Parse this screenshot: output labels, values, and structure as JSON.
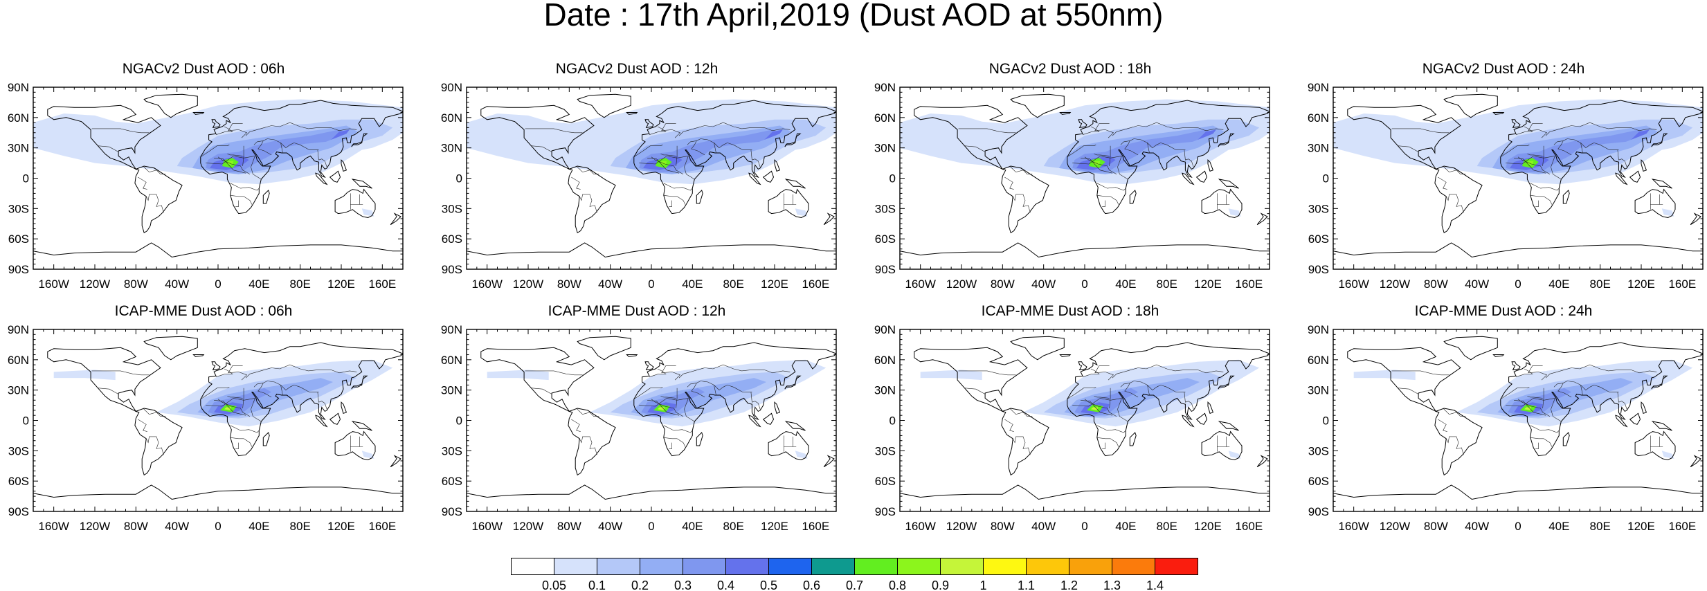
{
  "title": "Date : 17th April,2019 (Dust AOD at 550nm)",
  "panels": [
    {
      "title": "NGACv2 Dust AOD : 06h",
      "model": "NGACv2",
      "lead": "06h",
      "row": 0,
      "col": 0
    },
    {
      "title": "NGACv2 Dust AOD : 12h",
      "model": "NGACv2",
      "lead": "12h",
      "row": 0,
      "col": 1
    },
    {
      "title": "NGACv2 Dust AOD : 18h",
      "model": "NGACv2",
      "lead": "18h",
      "row": 0,
      "col": 2
    },
    {
      "title": "NGACv2 Dust AOD : 24h",
      "model": "NGACv2",
      "lead": "24h",
      "row": 0,
      "col": 3
    },
    {
      "title": "ICAP-MME Dust AOD : 06h",
      "model": "ICAP-MME",
      "lead": "06h",
      "row": 1,
      "col": 0
    },
    {
      "title": "ICAP-MME Dust AOD : 12h",
      "model": "ICAP-MME",
      "lead": "12h",
      "row": 1,
      "col": 1
    },
    {
      "title": "ICAP-MME Dust AOD : 18h",
      "model": "ICAP-MME",
      "lead": "18h",
      "row": 1,
      "col": 2
    },
    {
      "title": "ICAP-MME Dust AOD : 24h",
      "model": "ICAP-MME",
      "lead": "24h",
      "row": 1,
      "col": 3
    }
  ],
  "axes": {
    "lat_ticks": [
      "90N",
      "60N",
      "30N",
      "0",
      "30S",
      "60S",
      "90S"
    ],
    "lon_ticks": [
      "160W",
      "120W",
      "80W",
      "40W",
      "0",
      "40E",
      "80E",
      "120E",
      "160E"
    ]
  },
  "colorbar": {
    "levels": [
      "0.05",
      "0.1",
      "0.2",
      "0.3",
      "0.4",
      "0.5",
      "0.6",
      "0.7",
      "0.8",
      "0.9",
      "1",
      "1.1",
      "1.2",
      "1.3",
      "1.4"
    ],
    "colors": [
      "#ffffff",
      "#d6e2fb",
      "#b4c8f8",
      "#93aef4",
      "#7f97ef",
      "#6472ec",
      "#1e64ee",
      "#0e9a8f",
      "#62ee20",
      "#8cf51c",
      "#c5f539",
      "#fef811",
      "#fdc70a",
      "#f9a10b",
      "#fb7b0c",
      "#fa1d0e"
    ]
  }
}
